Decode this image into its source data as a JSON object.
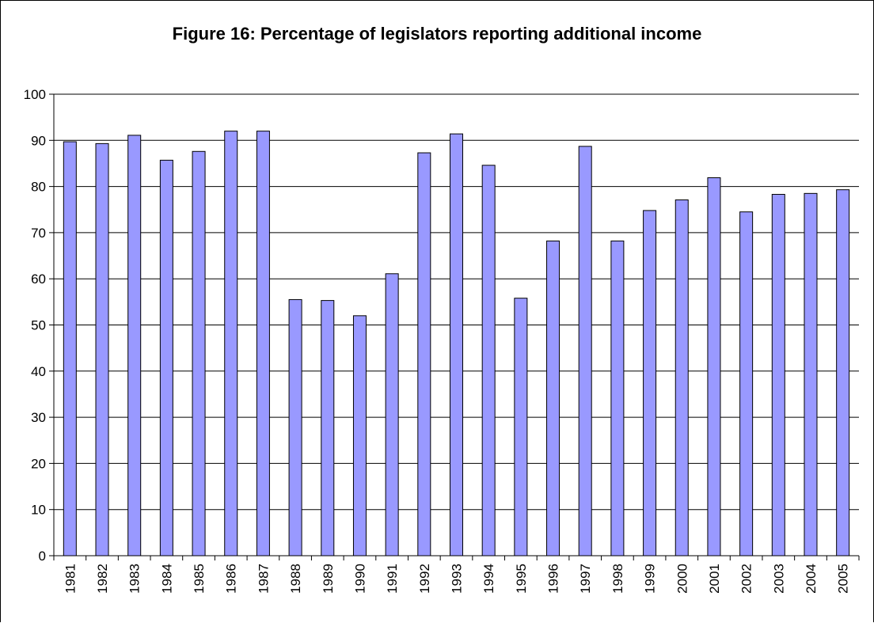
{
  "chart_data": {
    "type": "bar",
    "title": "Figure 16: Percentage of legislators reporting additional income",
    "xlabel": "",
    "ylabel": "",
    "categories": [
      "1981",
      "1982",
      "1983",
      "1984",
      "1985",
      "1986",
      "1987",
      "1988",
      "1989",
      "1990",
      "1991",
      "1992",
      "1993",
      "1994",
      "1995",
      "1996",
      "1997",
      "1998",
      "1999",
      "2000",
      "2001",
      "2002",
      "2003",
      "2004",
      "2005"
    ],
    "values": [
      89.7,
      89.3,
      91.1,
      85.7,
      87.6,
      92.0,
      92.0,
      55.5,
      55.3,
      52.0,
      61.1,
      87.3,
      91.4,
      84.6,
      55.8,
      68.2,
      88.7,
      68.2,
      74.8,
      77.1,
      81.9,
      74.5,
      78.3,
      78.5,
      79.3
    ],
    "ylim": [
      0,
      100
    ],
    "yticks": [
      0,
      10,
      20,
      30,
      40,
      50,
      60,
      70,
      80,
      90,
      100
    ],
    "grid": true,
    "legend": "none",
    "colors": {
      "bar_fill": "#9999ff",
      "bar_stroke": "#000000",
      "gridline": "#000000",
      "axis": "#000000"
    }
  }
}
